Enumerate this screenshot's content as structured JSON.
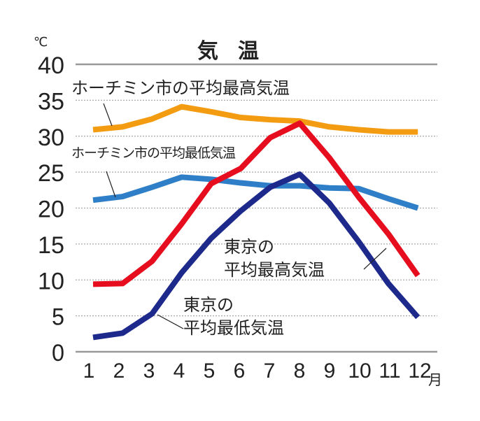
{
  "chart_data": {
    "type": "line",
    "title": "気温",
    "ylabel": "℃",
    "xlabel": "月",
    "ylim": [
      0,
      40
    ],
    "yticks": [
      "0",
      "5",
      "10",
      "15",
      "20",
      "25",
      "30",
      "35",
      "40"
    ],
    "x": [
      1,
      2,
      3,
      4,
      5,
      6,
      7,
      8,
      9,
      10,
      11,
      12
    ],
    "xtick_labels": [
      "1",
      "2",
      "3",
      "4",
      "5",
      "6",
      "7",
      "8",
      "9",
      "10",
      "11",
      "12"
    ],
    "grid": true,
    "series": [
      {
        "name": "ホーチミン市の平均最高気温",
        "color": "#f39c12",
        "values": [
          30.9,
          31.3,
          32.4,
          34.1,
          33.4,
          32.6,
          32.3,
          32.1,
          31.3,
          30.9,
          30.6,
          30.6
        ]
      },
      {
        "name": "ホーチミン市の平均最低気温",
        "color": "#2f7fc8",
        "values": [
          21.1,
          21.6,
          22.9,
          24.3,
          24.0,
          23.5,
          23.1,
          23.1,
          22.8,
          22.7,
          21.3,
          20.0
        ]
      },
      {
        "name": "東京の平均最高気温",
        "color": "#e60d1e",
        "values": [
          9.4,
          9.5,
          12.6,
          17.8,
          23.4,
          25.5,
          29.8,
          31.8,
          27.0,
          21.5,
          16.4,
          10.6
        ]
      },
      {
        "name": "東京の平均最低気温",
        "color": "#1d2a8c",
        "values": [
          2.0,
          2.6,
          5.3,
          11.0,
          15.8,
          19.6,
          22.9,
          24.7,
          20.7,
          15.3,
          9.5,
          4.8
        ]
      }
    ],
    "labels": {
      "hcm_high": "ホーチミン市の平均最高気温",
      "hcm_low": "ホーチミン市の平均最低気温",
      "tokyo_high_1": "東京の",
      "tokyo_high_2": "平均最高気温",
      "tokyo_low_1": "東京の",
      "tokyo_low_2": "平均最低気温"
    }
  }
}
